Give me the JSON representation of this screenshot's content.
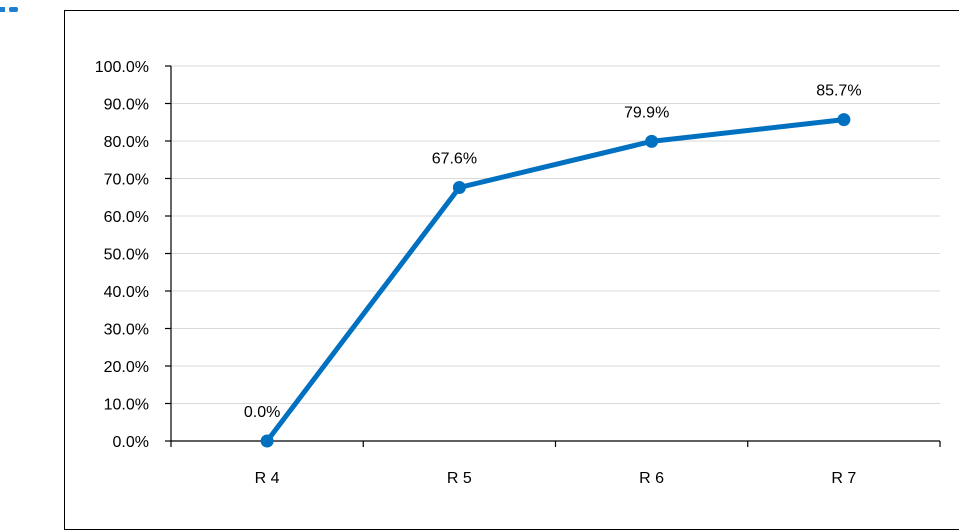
{
  "chart_data": {
    "type": "line",
    "categories": [
      "R 4",
      "R 5",
      "R 6",
      "R 7"
    ],
    "series": [
      {
        "values": [
          0.0,
          67.6,
          79.9,
          85.7
        ],
        "color": "#0070c0"
      }
    ],
    "data_labels": [
      "0.0%",
      "67.6%",
      "79.9%",
      "85.7%"
    ],
    "y_ticks": [
      "0.0%",
      "10.0%",
      "20.0%",
      "30.0%",
      "40.0%",
      "50.0%",
      "60.0%",
      "70.0%",
      "80.0%",
      "90.0%",
      "100.0%"
    ],
    "ylim": [
      0,
      100
    ],
    "grid": true,
    "legend": "none"
  }
}
